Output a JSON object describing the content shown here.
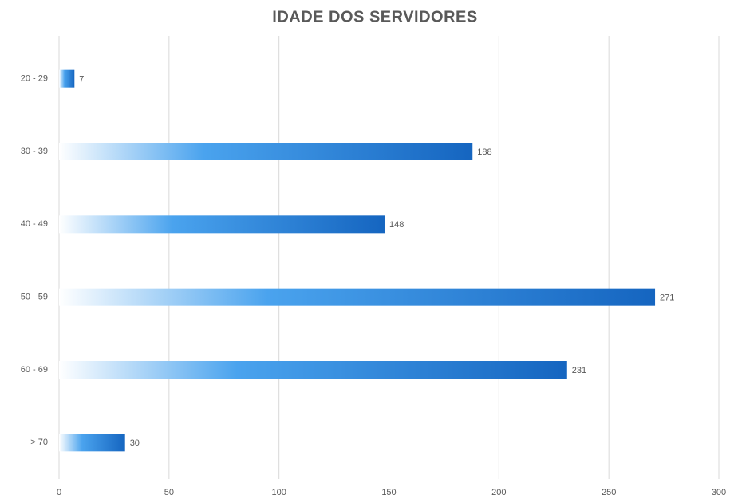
{
  "chart_data": {
    "type": "hbar",
    "title": "IDADE DOS SERVIDORES",
    "categories": [
      "20 - 29",
      "30 - 39",
      "40 - 49",
      "50 - 59",
      "60 - 69",
      "> 70"
    ],
    "values": [
      7,
      188,
      148,
      271,
      231,
      30
    ],
    "gradient": [
      "#ffffff",
      "#4aa3ee",
      "#1565c0"
    ],
    "xlim": [
      0,
      300
    ],
    "xticks": [
      0,
      50,
      100,
      150,
      200,
      250,
      300
    ],
    "grid": true
  }
}
